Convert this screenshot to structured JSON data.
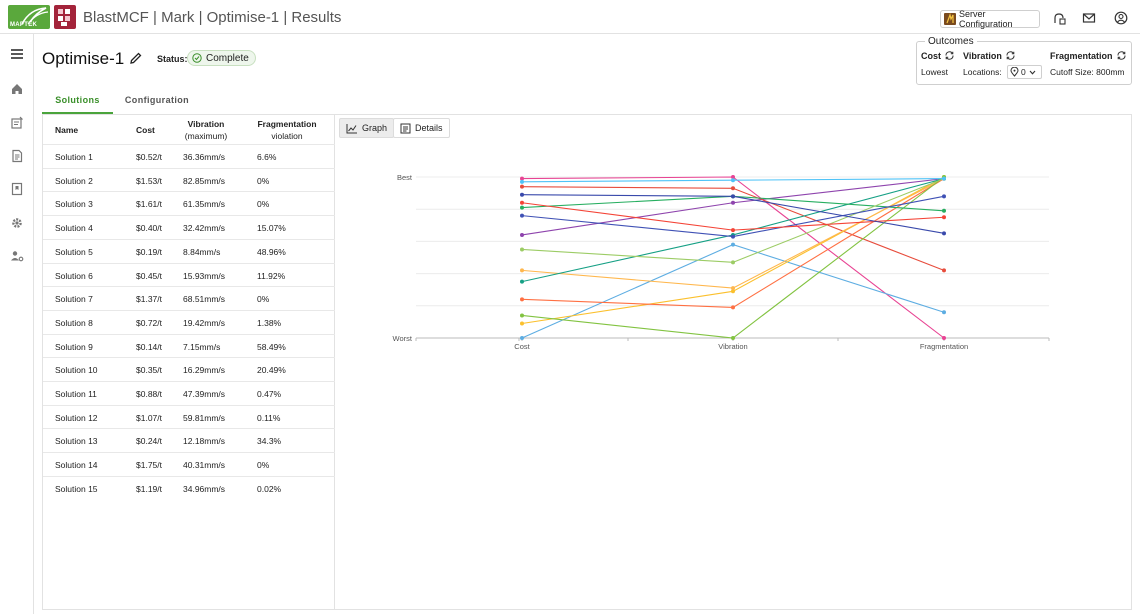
{
  "header": {
    "logo_text": "MAPTEK",
    "title": "BlastMCF | Mark | Optimise-1 | Results",
    "server_button_label": "Server Configuration",
    "icons": [
      "server-icon",
      "connection-status-icon",
      "mail-icon",
      "account-icon"
    ]
  },
  "sidebar": {
    "icons": [
      "menu-icon",
      "home-icon",
      "notes-icon",
      "document-icon",
      "bookmark-icon",
      "settings-icon",
      "user-settings-icon"
    ]
  },
  "page": {
    "title": "Optimise-1",
    "status_label": "Status:",
    "status_value": "Complete"
  },
  "outcomes": {
    "title": "Outcomes",
    "cost_label": "Cost",
    "cost_value": "Lowest",
    "vibration_label": "Vibration",
    "locations_label": "Locations:",
    "locations_value": "0",
    "fragmentation_label": "Fragmentation",
    "cutoff_label": "Cutoff Size: 800mm"
  },
  "tabs": [
    {
      "label": "Solutions",
      "active": true
    },
    {
      "label": "Configuration",
      "active": false
    }
  ],
  "table": {
    "headers": {
      "name": "Name",
      "cost": "Cost",
      "vib1": "Vibration",
      "vib2": "(maximum)",
      "frag1": "Fragmentation",
      "frag2": "violation"
    },
    "rows": [
      {
        "name": "Solution 1",
        "cost": "$0.52/t",
        "vibration": "36.36mm/s",
        "frag": "6.6%"
      },
      {
        "name": "Solution 2",
        "cost": "$1.53/t",
        "vibration": "82.85mm/s",
        "frag": "0%"
      },
      {
        "name": "Solution 3",
        "cost": "$1.61/t",
        "vibration": "61.35mm/s",
        "frag": "0%"
      },
      {
        "name": "Solution 4",
        "cost": "$0.40/t",
        "vibration": "32.42mm/s",
        "frag": "15.07%"
      },
      {
        "name": "Solution 5",
        "cost": "$0.19/t",
        "vibration": "8.84mm/s",
        "frag": "48.96%"
      },
      {
        "name": "Solution 6",
        "cost": "$0.45/t",
        "vibration": "15.93mm/s",
        "frag": "11.92%"
      },
      {
        "name": "Solution 7",
        "cost": "$1.37/t",
        "vibration": "68.51mm/s",
        "frag": "0%"
      },
      {
        "name": "Solution 8",
        "cost": "$0.72/t",
        "vibration": "19.42mm/s",
        "frag": "1.38%"
      },
      {
        "name": "Solution 9",
        "cost": "$0.14/t",
        "vibration": "7.15mm/s",
        "frag": "58.49%"
      },
      {
        "name": "Solution 10",
        "cost": "$0.35/t",
        "vibration": "16.29mm/s",
        "frag": "20.49%"
      },
      {
        "name": "Solution 11",
        "cost": "$0.88/t",
        "vibration": "47.39mm/s",
        "frag": "0.47%"
      },
      {
        "name": "Solution 12",
        "cost": "$1.07/t",
        "vibration": "59.81mm/s",
        "frag": "0.11%"
      },
      {
        "name": "Solution 13",
        "cost": "$0.24/t",
        "vibration": "12.18mm/s",
        "frag": "34.3%"
      },
      {
        "name": "Solution 14",
        "cost": "$1.75/t",
        "vibration": "40.31mm/s",
        "frag": "0%"
      },
      {
        "name": "Solution 15",
        "cost": "$1.19/t",
        "vibration": "34.96mm/s",
        "frag": "0.02%"
      }
    ]
  },
  "graph_controls": {
    "graph_label": "Graph",
    "details_label": "Details"
  },
  "chart_data": {
    "type": "line",
    "title": "",
    "categories": [
      "Cost",
      "Vibration",
      "Fragmentation"
    ],
    "y_top_label": "Best",
    "y_bottom_label": "Worst",
    "ylim": [
      0,
      1
    ],
    "grid": true,
    "series": [
      {
        "name": "Solution 1",
        "color": "#8e44ad",
        "values": [
          0.64,
          0.84,
          0.99
        ]
      },
      {
        "name": "Solution 2",
        "color": "#e84393",
        "values": [
          0.99,
          1.0,
          0.0
        ]
      },
      {
        "name": "Solution 3",
        "color": "#e74c3c",
        "values": [
          0.94,
          0.93,
          0.42
        ]
      },
      {
        "name": "Solution 4",
        "color": "#5dade2",
        "values": [
          0.0,
          0.58,
          0.16
        ]
      },
      {
        "name": "Solution 5",
        "color": "#fbc02d",
        "values": [
          0.09,
          0.29,
          1.0
        ]
      },
      {
        "name": "Solution 6",
        "color": "#ffb74d",
        "values": [
          0.42,
          0.31,
          0.99
        ]
      },
      {
        "name": "Solution 7",
        "color": "#ff7043",
        "values": [
          0.24,
          0.19,
          0.99
        ]
      },
      {
        "name": "Solution 8",
        "color": "#82c341",
        "values": [
          0.14,
          0.0,
          1.0
        ]
      },
      {
        "name": "Solution 9",
        "color": "#16a085",
        "values": [
          0.35,
          0.64,
          0.99
        ]
      },
      {
        "name": "Solution 10",
        "color": "#27ae60",
        "values": [
          0.81,
          0.88,
          0.79
        ]
      },
      {
        "name": "Solution 11",
        "color": "#9ccc65",
        "values": [
          0.55,
          0.47,
          0.99
        ]
      },
      {
        "name": "Solution 12",
        "color": "#3f51b5",
        "values": [
          0.76,
          0.63,
          0.88
        ]
      },
      {
        "name": "Solution 13",
        "color": "#f44336",
        "values": [
          0.84,
          0.67,
          0.75
        ]
      },
      {
        "name": "Solution 14",
        "color": "#4fc3f7",
        "values": [
          0.97,
          0.98,
          0.99
        ]
      },
      {
        "name": "Solution 15",
        "color": "#3949ab",
        "values": [
          0.89,
          0.88,
          0.65
        ]
      }
    ]
  }
}
